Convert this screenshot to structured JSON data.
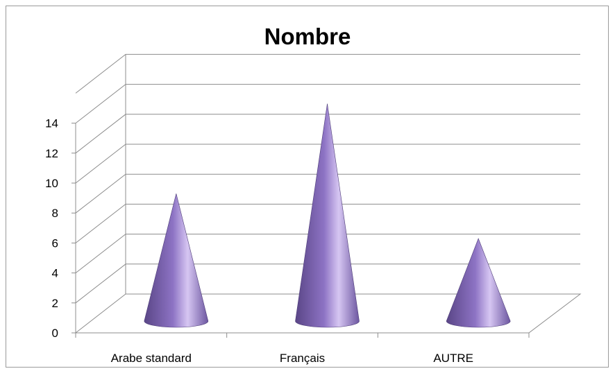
{
  "chart_data": {
    "type": "bar",
    "style": "3d-cone",
    "title": "Nombre",
    "xlabel": "",
    "ylabel": "",
    "categories": [
      "Arabe standard",
      "Français",
      "AUTRE"
    ],
    "values": [
      8,
      14,
      5
    ],
    "ylim": [
      0,
      14
    ],
    "yticks": [
      0,
      2,
      4,
      6,
      8,
      10,
      12,
      14
    ],
    "grid": true,
    "legend": "none",
    "colors": {
      "cone_dark": "#5a4687",
      "cone_mid": "#8d73c4",
      "cone_light": "#d6c6f2",
      "gridline": "#8c8c8c"
    }
  }
}
